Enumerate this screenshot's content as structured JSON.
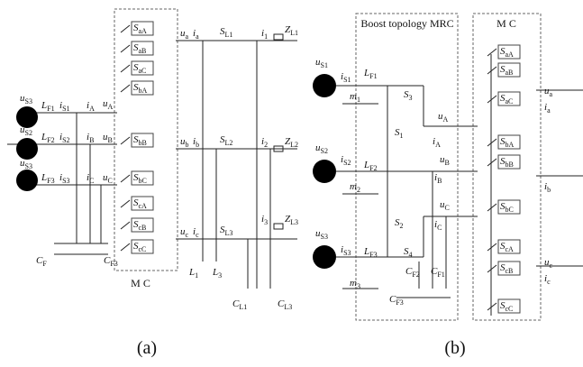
{
  "panel_a": {
    "caption": "(a)",
    "box_label": "M C",
    "labels": [
      {
        "main": "u",
        "sub": "S3"
      },
      {
        "main": "L",
        "sub": "F1"
      },
      {
        "main": "i",
        "sub": "S1"
      },
      {
        "main": "i",
        "sub": "A"
      },
      {
        "main": "u",
        "sub": "A"
      },
      {
        "main": "u",
        "sub": "S2"
      },
      {
        "main": "L",
        "sub": "F2"
      },
      {
        "main": "i",
        "sub": "S2"
      },
      {
        "main": "i",
        "sub": "B"
      },
      {
        "main": "u",
        "sub": "B"
      },
      {
        "main": "u",
        "sub": "S3"
      },
      {
        "main": "L",
        "sub": "F3"
      },
      {
        "main": "i",
        "sub": "S3"
      },
      {
        "main": "i",
        "sub": "C"
      },
      {
        "main": "u",
        "sub": "C"
      },
      {
        "main": "S",
        "sub": "aA"
      },
      {
        "main": "S",
        "sub": "aB"
      },
      {
        "main": "S",
        "sub": "aC"
      },
      {
        "main": "S",
        "sub": "bA"
      },
      {
        "main": "S",
        "sub": "bB"
      },
      {
        "main": "S",
        "sub": "bC"
      },
      {
        "main": "S",
        "sub": "cA"
      },
      {
        "main": "S",
        "sub": "cB"
      },
      {
        "main": "S",
        "sub": "cC"
      },
      {
        "main": "u",
        "sub": "a"
      },
      {
        "main": "i",
        "sub": "a"
      },
      {
        "main": "S",
        "sub": "L1"
      },
      {
        "main": "i",
        "sub": "1"
      },
      {
        "main": "Z",
        "sub": "L1"
      },
      {
        "main": "u",
        "sub": "b"
      },
      {
        "main": "i",
        "sub": "b"
      },
      {
        "main": "S",
        "sub": "L2"
      },
      {
        "main": "i",
        "sub": "2"
      },
      {
        "main": "Z",
        "sub": "L2"
      },
      {
        "main": "u",
        "sub": "c"
      },
      {
        "main": "i",
        "sub": "c"
      },
      {
        "main": "S",
        "sub": "L3"
      },
      {
        "main": "i",
        "sub": "3"
      },
      {
        "main": "Z",
        "sub": "L3"
      },
      {
        "main": "L",
        "sub": "1"
      },
      {
        "main": "L",
        "sub": "3"
      },
      {
        "main": "C",
        "sub": "F"
      },
      {
        "main": "C",
        "sub": "F3"
      },
      {
        "main": "C",
        "sub": "L1"
      },
      {
        "main": "C",
        "sub": "L3"
      }
    ]
  },
  "panel_b": {
    "caption": "(b)",
    "box_label": "M C",
    "title": "Boost topology MRC",
    "labels": [
      {
        "main": "u",
        "sub": "S1"
      },
      {
        "main": "i",
        "sub": "S1"
      },
      {
        "main": "L",
        "sub": "F1"
      },
      {
        "main": "m",
        "sub": "1"
      },
      {
        "main": "u",
        "sub": "S2"
      },
      {
        "main": "i",
        "sub": "S2"
      },
      {
        "main": "L",
        "sub": "F2"
      },
      {
        "main": "m",
        "sub": "2"
      },
      {
        "main": "u",
        "sub": "S3"
      },
      {
        "main": "i",
        "sub": "S3"
      },
      {
        "main": "L",
        "sub": "F3"
      },
      {
        "main": "m",
        "sub": "3"
      },
      {
        "main": "S",
        "sub": "1"
      },
      {
        "main": "S",
        "sub": "2"
      },
      {
        "main": "S",
        "sub": "3"
      },
      {
        "main": "S",
        "sub": "4"
      },
      {
        "main": "u",
        "sub": "A"
      },
      {
        "main": "i",
        "sub": "A"
      },
      {
        "main": "u",
        "sub": "B"
      },
      {
        "main": "i",
        "sub": "B"
      },
      {
        "main": "u",
        "sub": "C"
      },
      {
        "main": "i",
        "sub": "C"
      },
      {
        "main": "C",
        "sub": "F2"
      },
      {
        "main": "C",
        "sub": "F1"
      },
      {
        "main": "C",
        "sub": "F3"
      },
      {
        "main": "S",
        "sub": "aA"
      },
      {
        "main": "S",
        "sub": "aB"
      },
      {
        "main": "S",
        "sub": "aC"
      },
      {
        "main": "S",
        "sub": "bA"
      },
      {
        "main": "S",
        "sub": "bB"
      },
      {
        "main": "S",
        "sub": "bC"
      },
      {
        "main": "S",
        "sub": "cA"
      },
      {
        "main": "S",
        "sub": "cB"
      },
      {
        "main": "S",
        "sub": "cC"
      },
      {
        "main": "u",
        "sub": "a"
      },
      {
        "main": "i",
        "sub": "a"
      },
      {
        "main": "i",
        "sub": "b"
      },
      {
        "main": "u",
        "sub": "c"
      },
      {
        "main": "i",
        "sub": "c"
      }
    ]
  }
}
